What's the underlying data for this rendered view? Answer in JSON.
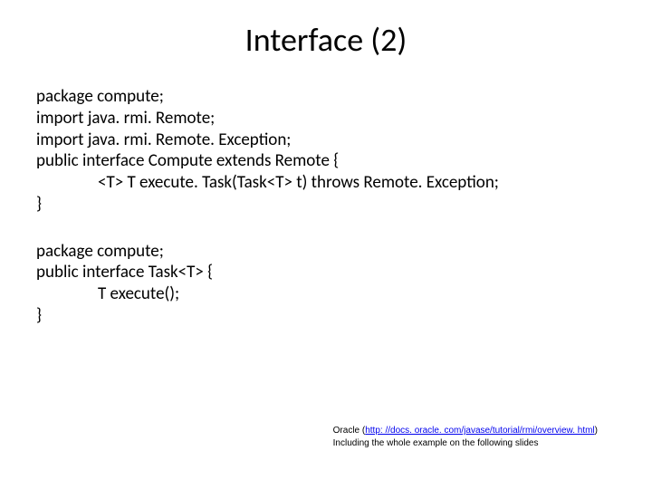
{
  "title": "Interface (2)",
  "code1": {
    "l1": "package compute;",
    "l2": "import java. rmi. Remote;",
    "l3": "import java. rmi. Remote. Exception;",
    "l4": "public interface Compute extends Remote {",
    "l5": "<T> T execute. Task(Task<T> t) throws Remote. Exception;",
    "l6": "}"
  },
  "code2": {
    "l1": "package compute;",
    "l2": "public interface Task<T> {",
    "l3": "T execute();",
    "l4": "}"
  },
  "footer": {
    "src_label": "Oracle (",
    "url_text": "http: //docs. oracle. com/javase/tutorial/rmi/overview. html",
    "url_href": "http://docs.oracle.com/javase/tutorial/rmi/overview.html",
    "close_paren": ")",
    "note": "Including the whole example on the following slides"
  }
}
